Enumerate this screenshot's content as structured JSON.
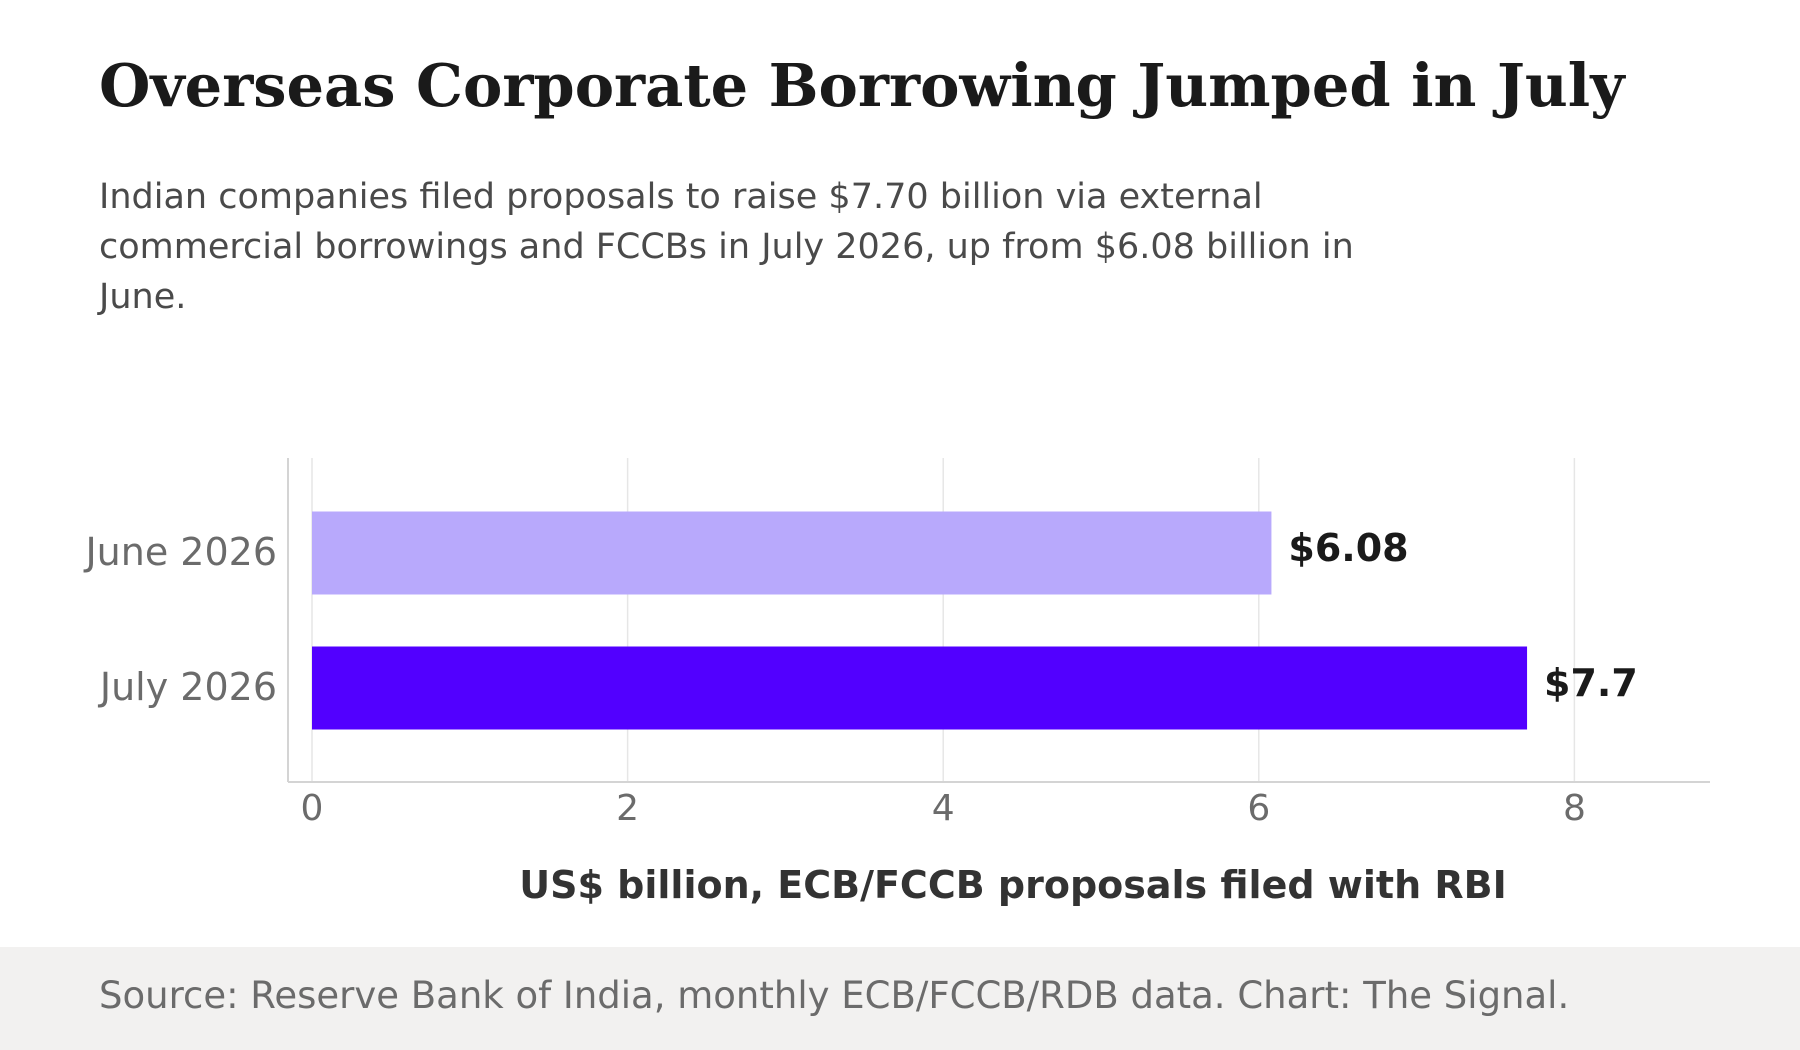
{
  "header": {
    "title": "Overseas Corporate Borrowing Jumped in July",
    "subtitle": "Indian companies filed proposals to raise $7.70 billion via external commercial borrowings and FCCBs in July 2026, up from $6.08 billion in June."
  },
  "footer": {
    "source": "Source: Reserve Bank of India, monthly ECB/FCCB/RDB data. Chart: The Signal."
  },
  "chart_data": {
    "type": "bar",
    "orientation": "horizontal",
    "title": "Overseas Corporate Borrowing Jumped in July",
    "xlabel": "US$ billion, ECB/FCCB proposals filed with RBI",
    "ylabel": "",
    "categories": [
      "June 2026",
      "July 2026"
    ],
    "values": [
      6.08,
      7.7
    ],
    "data_labels": [
      "$6.08",
      "$7.7"
    ],
    "bar_colors": [
      "#b8a9fc",
      "#5200ff"
    ],
    "xlim": [
      0,
      8.85
    ],
    "xticks": [
      0,
      2,
      4,
      6,
      8
    ],
    "xtick_labels": [
      "0",
      "2",
      "4",
      "6",
      "8"
    ],
    "grid": "vertical",
    "legend": "none"
  }
}
